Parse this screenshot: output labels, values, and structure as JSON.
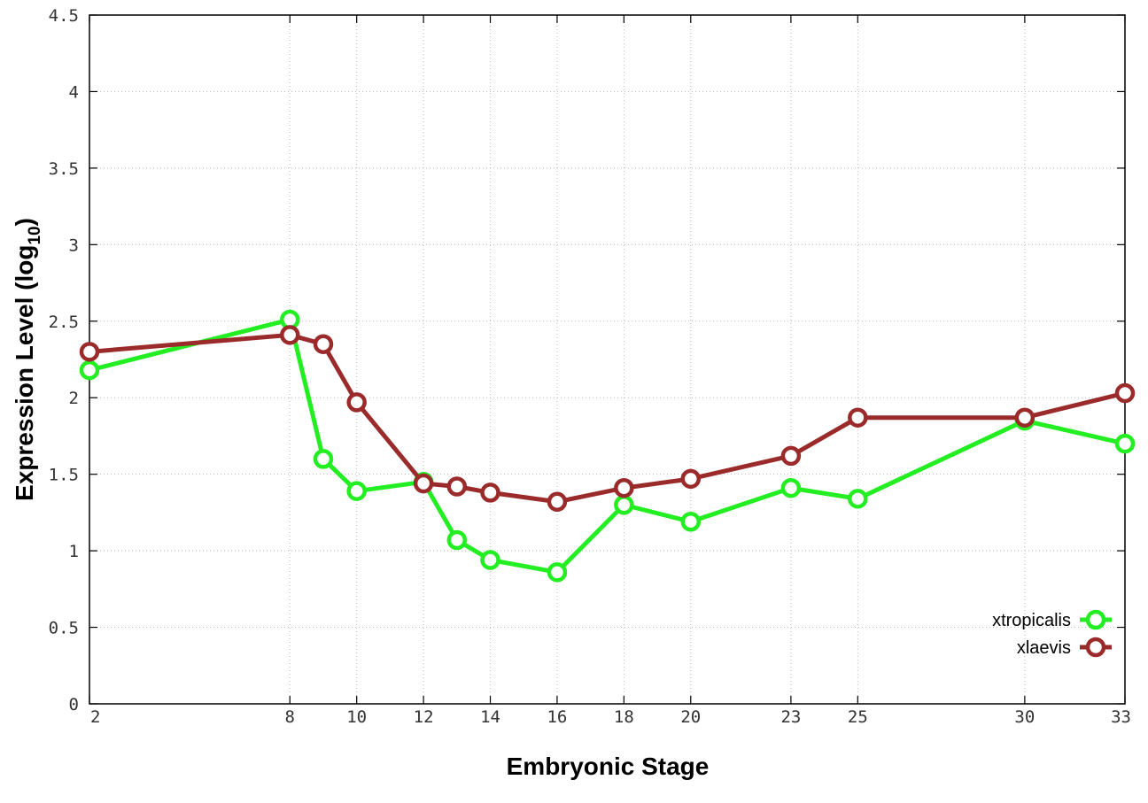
{
  "chart_data": {
    "type": "line",
    "title": "",
    "xlabel": "Embryonic Stage",
    "ylabel": {
      "main": "Expression Level (log",
      "sub": "10",
      "close": ")"
    },
    "x": [
      2,
      8,
      9,
      10,
      12,
      13,
      14,
      16,
      18,
      20,
      23,
      25,
      30,
      33
    ],
    "x_ticks": [
      2,
      8,
      10,
      12,
      14,
      16,
      18,
      20,
      23,
      25,
      30,
      33
    ],
    "y_ticks": [
      "0",
      "0.5",
      "1",
      "1.5",
      "2",
      "2.5",
      "3",
      "3.5",
      "4",
      "4.5"
    ],
    "xlim": [
      2,
      33
    ],
    "ylim": [
      0,
      4.5
    ],
    "grid": true,
    "legend_position": "bottom-right",
    "series": [
      {
        "name": "xtropicalis",
        "color": "#22ee22",
        "values": [
          2.18,
          2.51,
          1.6,
          1.39,
          1.45,
          1.07,
          0.94,
          0.86,
          1.3,
          1.19,
          1.41,
          1.34,
          1.85,
          1.7
        ]
      },
      {
        "name": "xlaevis",
        "color": "#9b2b2b",
        "values": [
          2.3,
          2.41,
          2.35,
          1.97,
          1.44,
          1.42,
          1.38,
          1.32,
          1.41,
          1.47,
          1.62,
          1.87,
          1.87,
          2.03
        ]
      }
    ]
  }
}
